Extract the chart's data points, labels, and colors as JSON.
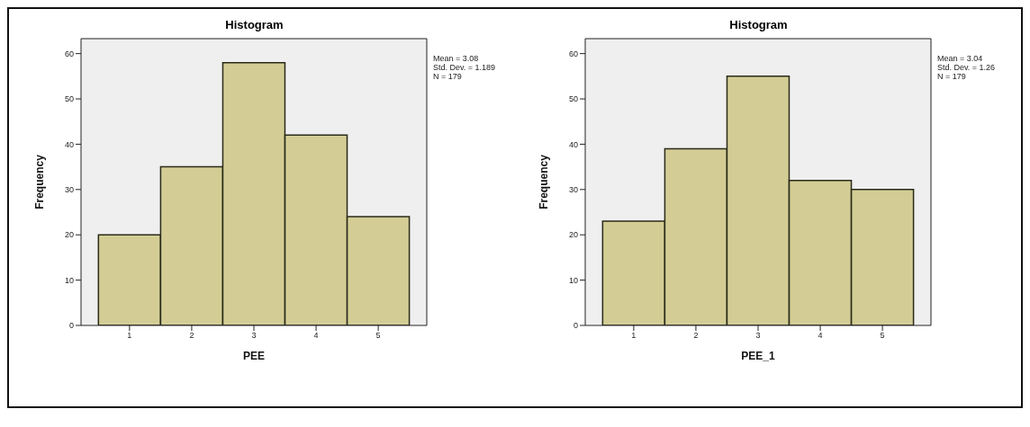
{
  "chart_data": [
    {
      "type": "histogram",
      "title": "Histogram",
      "xlabel": "PEE",
      "ylabel": "Frequency",
      "bins": [
        0.5,
        1.5,
        2.5,
        3.5,
        4.5,
        5.5
      ],
      "values": [
        20,
        35,
        58,
        42,
        24
      ],
      "color": "#d3cd95",
      "xlim": [
        0.22,
        5.78
      ],
      "xticks": [
        1,
        2,
        3,
        4,
        5
      ],
      "ylim": [
        0,
        63.3
      ],
      "yticks": [
        0,
        10,
        20,
        30,
        40,
        50,
        60
      ],
      "grid": false,
      "legend": false,
      "annotations": [
        "Mean = 3.08",
        "Std. Dev. = 1.189",
        "N = 179"
      ]
    },
    {
      "type": "histogram",
      "title": "Histogram",
      "xlabel": "PEE_1",
      "ylabel": "Frequency",
      "bins": [
        0.5,
        1.5,
        2.5,
        3.5,
        4.5,
        5.5
      ],
      "values": [
        23,
        39,
        55,
        32,
        30
      ],
      "color": "#d3cd95",
      "xlim": [
        0.22,
        5.78
      ],
      "xticks": [
        1,
        2,
        3,
        4,
        5
      ],
      "ylim": [
        0,
        63.3
      ],
      "yticks": [
        0,
        10,
        20,
        30,
        40,
        50,
        60
      ],
      "grid": false,
      "legend": false,
      "annotations": [
        "Mean = 3.04",
        "Std. Dev. = 1.26",
        "N = 179"
      ]
    }
  ]
}
